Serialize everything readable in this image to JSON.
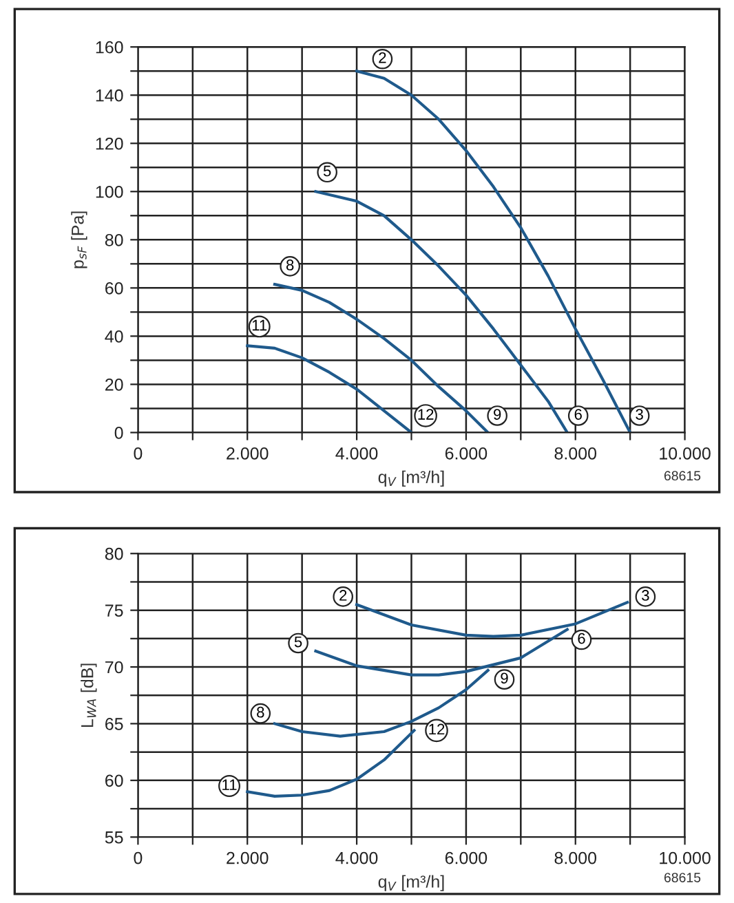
{
  "chart_data": [
    {
      "type": "line",
      "ylabel": "p$_{sF}$ [Pa]",
      "xlabel": "q$_{V}$ [m³/h]",
      "xlim": [
        0,
        10000
      ],
      "ylim": [
        0,
        160
      ],
      "grid": true,
      "xticks": [
        0,
        {
          "value": 1000,
          "label": null
        },
        {
          "value": 2000,
          "label": "2.000"
        },
        {
          "value": 3000,
          "label": null
        },
        {
          "value": 4000,
          "label": "4.000"
        },
        {
          "value": 5000,
          "label": null
        },
        {
          "value": 6000,
          "label": "6.000"
        },
        {
          "value": 7000,
          "label": null
        },
        {
          "value": 8000,
          "label": "8.000"
        },
        {
          "value": 9000,
          "label": null
        },
        {
          "value": 10000,
          "label": "10.000"
        }
      ],
      "yticks": [
        0,
        {
          "value": 10,
          "label": null
        },
        20,
        {
          "value": 30,
          "label": null
        },
        40,
        {
          "value": 50,
          "label": null
        },
        60,
        {
          "value": 70,
          "label": null
        },
        80,
        {
          "value": 90,
          "label": null
        },
        100,
        {
          "value": 110,
          "label": null
        },
        120,
        {
          "value": 130,
          "label": null
        },
        140,
        {
          "value": 150,
          "label": null
        },
        160
      ],
      "series": [
        {
          "color": "#1f5a8c",
          "x": [
            4000,
            4500,
            5000,
            5500,
            6000,
            6500,
            7000,
            7500,
            8000,
            8500,
            9000
          ],
          "values": [
            150,
            147,
            140,
            130,
            117,
            102,
            85,
            65,
            43,
            22,
            0
          ]
        },
        {
          "color": "#1f5a8c",
          "x": [
            3250,
            4000,
            4500,
            5000,
            5500,
            6000,
            6500,
            7000,
            7500,
            7850
          ],
          "values": [
            100,
            96,
            90,
            80,
            69,
            57,
            43,
            28,
            13,
            0
          ]
        },
        {
          "color": "#1f5a8c",
          "x": [
            2500,
            3000,
            3500,
            4000,
            4500,
            5000,
            5500,
            6000,
            6400
          ],
          "values": [
            61.5,
            59,
            54,
            47,
            39,
            30,
            19,
            9,
            0
          ]
        },
        {
          "color": "#1f5a8c",
          "x": [
            2000,
            2500,
            3000,
            3500,
            4000,
            4500,
            5000
          ],
          "values": [
            36,
            35,
            31,
            25,
            18,
            9,
            0
          ]
        }
      ],
      "annotations": [
        {
          "text": "2",
          "x": 4470,
          "y": 155
        },
        {
          "text": "5",
          "x": 3460,
          "y": 108
        },
        {
          "text": "8",
          "x": 2780,
          "y": 69
        },
        {
          "text": "11",
          "x": 2220,
          "y": 44
        },
        {
          "text": "12",
          "x": 5260,
          "y": 7
        },
        {
          "text": "9",
          "x": 6570,
          "y": 7
        },
        {
          "text": "6",
          "x": 8050,
          "y": 7
        },
        {
          "text": "3",
          "x": 9170,
          "y": 7
        },
        "68615"
      ]
    },
    {
      "type": "line",
      "ylabel": "L$_{WA}$ [dB]",
      "xlabel": "q$_{V}$ [m³/h]",
      "xlim": [
        0,
        10000
      ],
      "ylim": [
        55,
        80
      ],
      "grid": true,
      "xticks": [
        0,
        {
          "value": 1000,
          "label": null
        },
        {
          "value": 2000,
          "label": "2.000"
        },
        {
          "value": 3000,
          "label": null
        },
        {
          "value": 4000,
          "label": "4.000"
        },
        {
          "value": 5000,
          "label": null
        },
        {
          "value": 6000,
          "label": "6.000"
        },
        {
          "value": 7000,
          "label": null
        },
        {
          "value": 8000,
          "label": "8.000"
        },
        {
          "value": 9000,
          "label": null
        },
        {
          "value": 10000,
          "label": "10.000"
        }
      ],
      "yticks": [
        55,
        {
          "value": 57.5,
          "label": null
        },
        60,
        {
          "value": 62.5,
          "label": null
        },
        65,
        {
          "value": 67.5,
          "label": null
        },
        70,
        {
          "value": 72.5,
          "label": null
        },
        75,
        {
          "value": 77.5,
          "label": null
        },
        80
      ],
      "series": [
        {
          "color": "#1f5a8c",
          "x": [
            4000,
            5000,
            6000,
            6500,
            7000,
            8000,
            8950
          ],
          "values": [
            75.5,
            73.7,
            72.8,
            72.7,
            72.8,
            73.8,
            75.7
          ]
        },
        {
          "color": "#1f5a8c",
          "x": [
            3250,
            4000,
            5000,
            5500,
            6000,
            7000,
            7850
          ],
          "values": [
            71.4,
            70.1,
            69.3,
            69.3,
            69.6,
            70.8,
            73.3
          ]
        },
        {
          "color": "#1f5a8c",
          "x": [
            2500,
            3000,
            3700,
            4500,
            5000,
            5500,
            6000,
            6400
          ],
          "values": [
            65,
            64.3,
            63.9,
            64.3,
            65.2,
            66.4,
            68,
            69.7
          ]
        },
        {
          "color": "#1f5a8c",
          "x": [
            2000,
            2500,
            3000,
            3500,
            4000,
            4500,
            5050
          ],
          "values": [
            59,
            58.6,
            58.7,
            59.1,
            60.1,
            61.8,
            64.4
          ]
        }
      ],
      "annotations": [
        {
          "text": "2",
          "x": 3750,
          "y": 76.2
        },
        {
          "text": "3",
          "x": 9280,
          "y": 76.2
        },
        {
          "text": "5",
          "x": 2930,
          "y": 72.1
        },
        {
          "text": "6",
          "x": 8110,
          "y": 72.4
        },
        {
          "text": "8",
          "x": 2240,
          "y": 65.9
        },
        {
          "text": "9",
          "x": 6700,
          "y": 68.9
        },
        {
          "text": "11",
          "x": 1670,
          "y": 59.5
        },
        {
          "text": "12",
          "x": 5460,
          "y": 64.4
        },
        "68615"
      ]
    }
  ]
}
